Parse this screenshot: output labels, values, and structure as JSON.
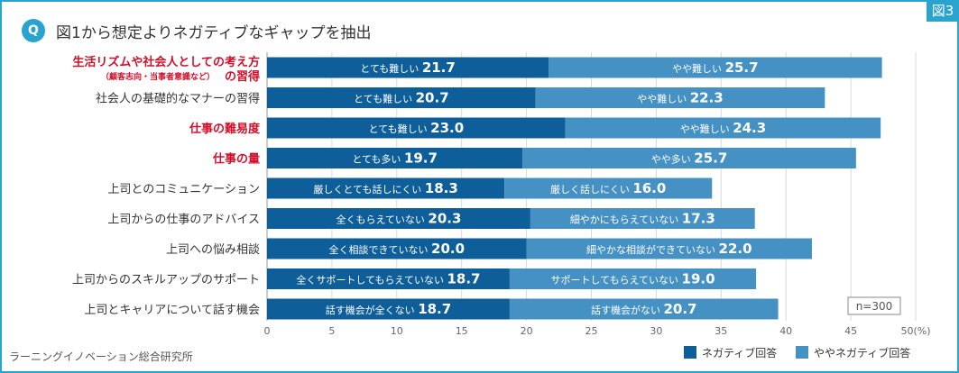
{
  "figure_label": "図3",
  "question_badge": "Q",
  "title": "図1から想定よりネガティブなギャップを抽出",
  "credit": "ラーニングイノベーション総合研究所",
  "sample_size": "n=300",
  "colors": {
    "frame": "#29a3cf",
    "negative": "#0e5e9a",
    "somewhat_negative": "#4591c4",
    "highlight_label": "#d0102a",
    "label": "#333333",
    "axis_text": "#666666",
    "grid": "#d9d9d9"
  },
  "chart_data": {
    "type": "bar",
    "orientation": "horizontal",
    "stacked": true,
    "title": "図1から想定よりネガティブなギャップを抽出",
    "xlim": [
      0,
      50
    ],
    "x_ticks": [
      "0",
      "5",
      "10",
      "15",
      "20",
      "25",
      "30",
      "35",
      "40",
      "45",
      "50(%)"
    ],
    "xlabel": "%",
    "legend": {
      "position": "bottom-right"
    },
    "series": [
      {
        "key": "negative",
        "name": "ネガティブ回答"
      },
      {
        "key": "somewhat_negative",
        "name": "ややネガティブ回答"
      }
    ],
    "categories": [
      {
        "label": "生活リズムや社会人としての考え方",
        "sub_label": "（顧客志向・当事者意識など）",
        "suffix": "の習得",
        "highlight": true,
        "neg_label": "とても難しい",
        "neg_value": 21.7,
        "some_label": "やや難しい",
        "some_value": 25.7
      },
      {
        "label": "社会人の基礎的なマナーの習得",
        "highlight": false,
        "neg_label": "とても難しい",
        "neg_value": 20.7,
        "some_label": "やや難しい",
        "some_value": 22.3
      },
      {
        "label": "仕事の難易度",
        "highlight": true,
        "neg_label": "とても難しい",
        "neg_value": 23.0,
        "some_label": "やや難しい",
        "some_value": 24.3
      },
      {
        "label": "仕事の量",
        "highlight": true,
        "neg_label": "とても多い",
        "neg_value": 19.7,
        "some_label": "やや多い",
        "some_value": 25.7
      },
      {
        "label": "上司とのコミュニケーション",
        "highlight": false,
        "neg_label": "厳しくとても話しにくい",
        "neg_value": 18.3,
        "some_label": "厳しく話しにくい",
        "some_value": 16.0
      },
      {
        "label": "上司からの仕事のアドバイス",
        "highlight": false,
        "neg_label": "全くもらえていない",
        "neg_value": 20.3,
        "some_label": "細やかにもらえていない",
        "some_value": 17.3
      },
      {
        "label": "上司への悩み相談",
        "highlight": false,
        "neg_label": "全く相談できていない",
        "neg_value": 20.0,
        "some_label": "細やかな相談ができていない",
        "some_value": 22.0
      },
      {
        "label": "上司からのスキルアップのサポート",
        "highlight": false,
        "neg_label": "全くサポートしてもらえていない",
        "neg_value": 18.7,
        "some_label": "サポートしてもらえていない",
        "some_value": 19.0
      },
      {
        "label": "上司とキャリアについて話す機会",
        "highlight": false,
        "neg_label": "話す機会が全くない",
        "neg_value": 18.7,
        "some_label": "話す機会がない",
        "some_value": 20.7
      }
    ]
  }
}
